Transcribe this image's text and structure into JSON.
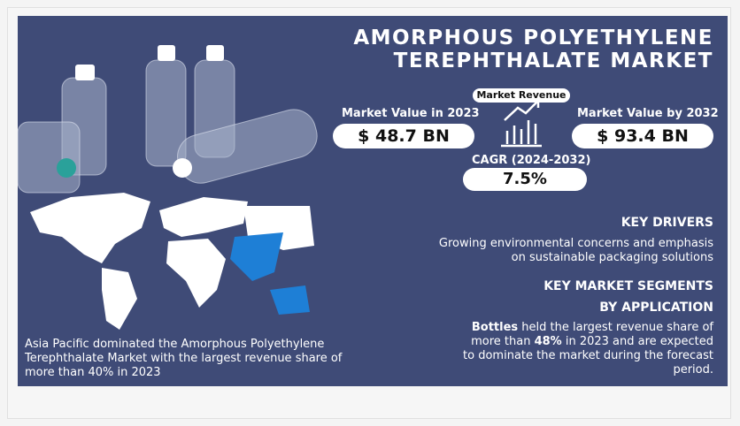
{
  "title": {
    "lines": [
      "AMORPHOUS POLYETHYLENE",
      "TEREPHTHALATE MARKET"
    ]
  },
  "revenue": {
    "label": "Market Revenue",
    "value_2023": {
      "label": "Market Value in 2023",
      "value": "$ 48.7 BN"
    },
    "value_2032": {
      "label": "Market Value by 2032",
      "value": "$ 93.4 BN"
    },
    "cagr": {
      "label": "CAGR (2024-2032)",
      "value": "7.5%"
    }
  },
  "key_drivers": {
    "heading": "KEY DRIVERS",
    "text": "Growing environmental concerns and emphasis on sustainable packaging solutions"
  },
  "segments": {
    "heading": "KEY MARKET SEGMENTS",
    "subheading": "BY APPLICATION",
    "text_parts": [
      "Bottles",
      " held the largest revenue share of more than ",
      "48%",
      " in 2023 and are expected to dominate the market during the forecast period."
    ]
  },
  "region_note": "Asia Pacific dominated the Amorphous Polyethylene Terephthalate Market with the largest revenue share of more than 40% in 2023"
}
